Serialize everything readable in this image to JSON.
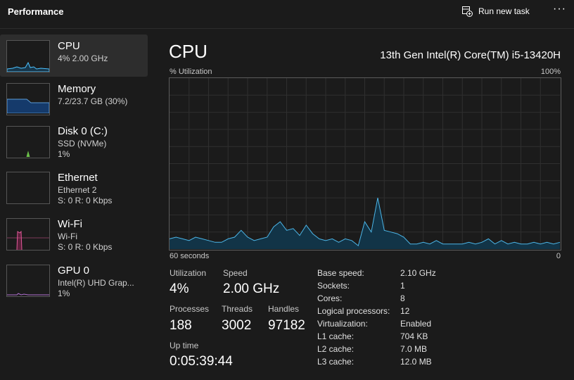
{
  "header": {
    "title": "Performance",
    "action": "Run new task"
  },
  "sidebar": {
    "items": [
      {
        "name": "CPU",
        "lines": [
          "4%  2.00 GHz"
        ]
      },
      {
        "name": "Memory",
        "lines": [
          "7.2/23.7 GB (30%)"
        ]
      },
      {
        "name": "Disk 0 (C:)",
        "lines": [
          "SSD (NVMe)",
          "1%"
        ]
      },
      {
        "name": "Ethernet",
        "lines": [
          "Ethernet 2",
          "S: 0 R: 0 Kbps"
        ]
      },
      {
        "name": "Wi-Fi",
        "lines": [
          "Wi-Fi",
          "S: 0 R: 0 Kbps"
        ]
      },
      {
        "name": "GPU 0",
        "lines": [
          "Intel(R) UHD Grap...",
          "1%"
        ]
      }
    ]
  },
  "main": {
    "title": "CPU",
    "model": "13th Gen Intel(R) Core(TM) i5-13420H",
    "graph": {
      "label": "% Utilization",
      "max_label": "100%",
      "time_label": "60 seconds",
      "end_label": "0",
      "ylim": [
        0,
        100
      ],
      "values": [
        6,
        7,
        6,
        5,
        7,
        6,
        5,
        4,
        4,
        6,
        7,
        11,
        7,
        5,
        6,
        7,
        13,
        16,
        11,
        12,
        8,
        14,
        9,
        6,
        5,
        6,
        4,
        6,
        5,
        2,
        16,
        10,
        30,
        11,
        10,
        9,
        7,
        3,
        3,
        4,
        3,
        5,
        3,
        3,
        3,
        3,
        4,
        3,
        4,
        6,
        3,
        5,
        3,
        4,
        3,
        3,
        4,
        3,
        4,
        3,
        4
      ]
    },
    "stats": [
      {
        "label": "Utilization",
        "value": "4%"
      },
      {
        "label": "Speed",
        "value": "2.00 GHz"
      },
      {
        "label": "Processes",
        "value": "188"
      },
      {
        "label": "Threads",
        "value": "3002"
      },
      {
        "label": "Handles",
        "value": "97182"
      },
      {
        "label": "Up time",
        "value": "0:05:39:44"
      }
    ],
    "specs": [
      [
        "Base speed:",
        "2.10 GHz"
      ],
      [
        "Sockets:",
        "1"
      ],
      [
        "Cores:",
        "8"
      ],
      [
        "Logical processors:",
        "12"
      ],
      [
        "Virtualization:",
        "Enabled"
      ],
      [
        "L1 cache:",
        "704 KB"
      ],
      [
        "L2 cache:",
        "7.0 MB"
      ],
      [
        "L3 cache:",
        "12.0 MB"
      ]
    ]
  }
}
